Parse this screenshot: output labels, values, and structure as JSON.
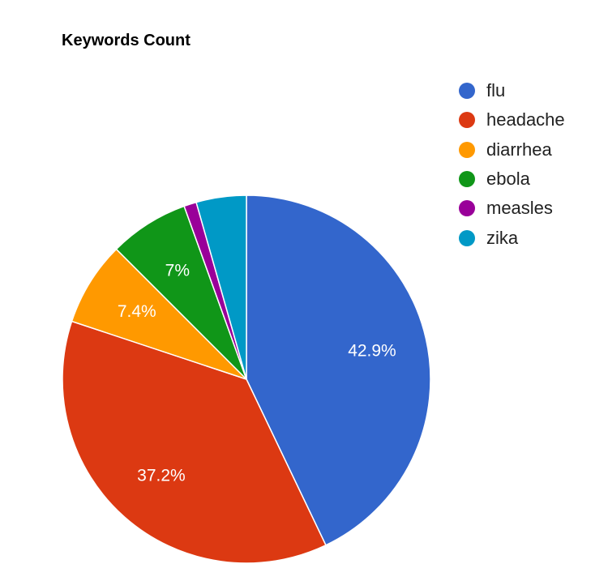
{
  "chart_data": {
    "type": "pie",
    "title": "Keywords Count",
    "legend_position": "right",
    "slices": [
      {
        "label": "flu",
        "value": 42.9,
        "display": "42.9%",
        "color": "#3366cc"
      },
      {
        "label": "headache",
        "value": 37.2,
        "display": "37.2%",
        "color": "#dc3912"
      },
      {
        "label": "diarrhea",
        "value": 7.4,
        "display": "7.4%",
        "color": "#ff9900"
      },
      {
        "label": "ebola",
        "value": 7.0,
        "display": "7%",
        "color": "#109618"
      },
      {
        "label": "measles",
        "value": 1.1,
        "display": "",
        "color": "#990099"
      },
      {
        "label": "zika",
        "value": 4.4,
        "display": "",
        "color": "#0099c6"
      }
    ]
  }
}
